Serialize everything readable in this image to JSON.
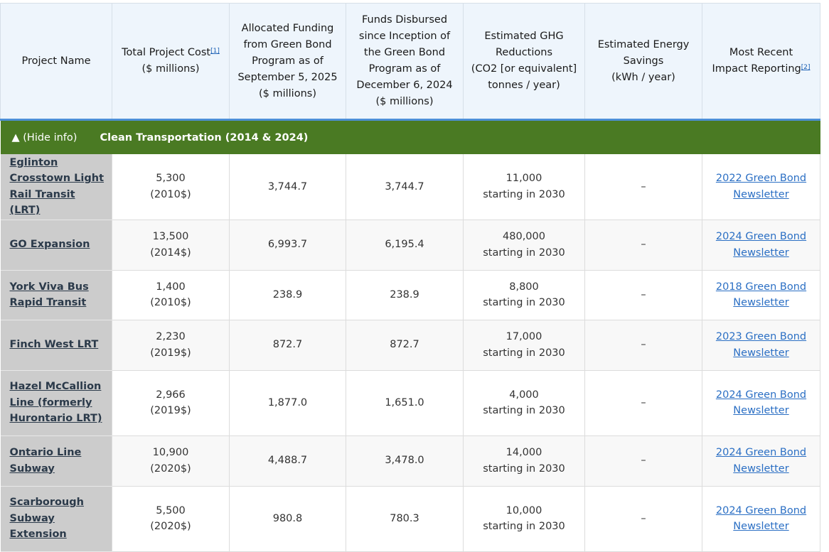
{
  "headers": {
    "project_name": "Project Name",
    "total_cost": "Total Project Cost",
    "total_cost_fn": "[1]",
    "total_cost_unit": "($ millions)",
    "allocated_l1": "Allocated Funding",
    "allocated_l2": "from Green Bond",
    "allocated_l3": "Program as of",
    "allocated_l4": "September 5, 2025",
    "allocated_l5": "($ millions)",
    "disbursed_l1": "Funds Disbursed",
    "disbursed_l2": "since Inception of",
    "disbursed_l3": "the Green Bond",
    "disbursed_l4": "Program as of",
    "disbursed_l5": "December 6, 2024",
    "disbursed_l6": "($ millions)",
    "ghg_l1": "Estimated GHG",
    "ghg_l2": "Reductions",
    "ghg_l3": "(CO2 [or equivalent]",
    "ghg_l4": "tonnes / year)",
    "energy_l1": "Estimated Energy",
    "energy_l2": "Savings",
    "energy_l3": "(kWh / year)",
    "impact_l1": "Most Recent",
    "impact_l2": "Impact Reporting",
    "impact_fn": "[2]"
  },
  "group": {
    "toggle": "▲ (Hide info)",
    "title": "Clean Transportation (2014 & 2024)"
  },
  "rows": [
    {
      "name": "Eglinton Crosstown Light Rail Transit (LRT)",
      "cost": "5,300",
      "cost_year": "(2010$)",
      "allocated": "3,744.7",
      "disbursed": "3,744.7",
      "ghg": "11,000",
      "ghg_note": "starting in 2030",
      "energy": "–",
      "report": "2022 Green Bond Newsletter"
    },
    {
      "name": "GO Expansion",
      "cost": "13,500",
      "cost_year": "(2014$)",
      "allocated": "6,993.7",
      "disbursed": "6,195.4",
      "ghg": "480,000",
      "ghg_note": "starting in 2030",
      "energy": "–",
      "report": "2024 Green Bond Newsletter"
    },
    {
      "name": "York Viva Bus Rapid Transit",
      "cost": "1,400",
      "cost_year": "(2010$)",
      "allocated": "238.9",
      "disbursed": "238.9",
      "ghg": "8,800",
      "ghg_note": "starting in 2030",
      "energy": "–",
      "report": "2018 Green Bond Newsletter"
    },
    {
      "name": "Finch West LRT",
      "cost": "2,230",
      "cost_year": "(2019$)",
      "allocated": "872.7",
      "disbursed": "872.7",
      "ghg": "17,000",
      "ghg_note": "starting in 2030",
      "energy": "–",
      "report": "2023 Green Bond Newsletter"
    },
    {
      "name": "Hazel McCallion Line (formerly Hurontario LRT)",
      "cost": "2,966",
      "cost_year": "(2019$)",
      "allocated": "1,877.0",
      "disbursed": "1,651.0",
      "ghg": "4,000",
      "ghg_note": "starting in 2030",
      "energy": "–",
      "report": "2024 Green Bond Newsletter"
    },
    {
      "name": "Ontario Line Subway",
      "cost": "10,900",
      "cost_year": "(2020$)",
      "allocated": "4,488.7",
      "disbursed": "3,478.0",
      "ghg": "14,000",
      "ghg_note": "starting in 2030",
      "energy": "–",
      "report": "2024 Green Bond Newsletter"
    },
    {
      "name": "Scarborough Subway Extension",
      "cost": "5,500",
      "cost_year": "(2020$)",
      "allocated": "980.8",
      "disbursed": "780.3",
      "ghg": "10,000",
      "ghg_note": "starting in 2030",
      "energy": "–",
      "report": "2024 Green Bond Newsletter"
    }
  ],
  "colors": {
    "header_bg": "#eef5fc",
    "header_rule": "#4d8fd6",
    "group_bg": "#4a7a23",
    "name_cell_bg": "#cccccc",
    "link": "#2b6fc4"
  }
}
